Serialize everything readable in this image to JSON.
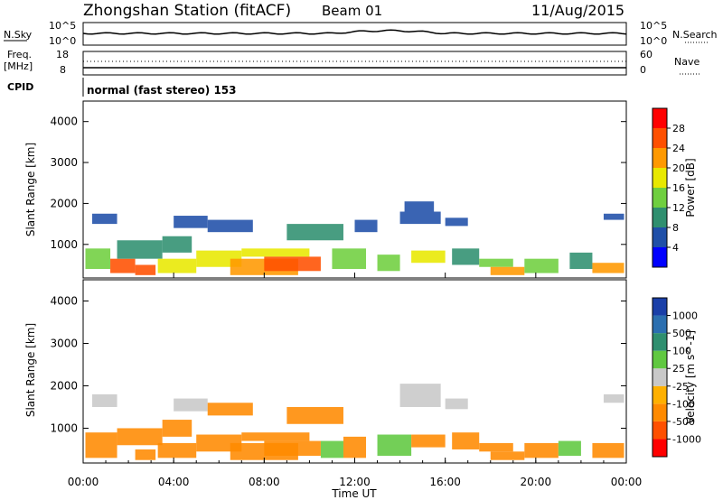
{
  "header": {
    "station": "Zhongshan Station (fitACF)",
    "beam": "Beam 01",
    "date": "11/Aug/2015"
  },
  "top_panel": {
    "left_label": "N.Sky",
    "left_ticks": [
      "10^5",
      "10^0"
    ],
    "right_label": "N.Search",
    "right_ticks": [
      "10^5",
      "10^0"
    ]
  },
  "freq_panel": {
    "left_label": "Freq.",
    "left_unit": "[MHz]",
    "left_ticks": [
      "18",
      "8"
    ],
    "right_label": "Nave",
    "right_ticks": [
      "60",
      "0"
    ]
  },
  "cpid_panel": {
    "label": "CPID",
    "text": "normal (fast stereo) 153"
  },
  "axes": {
    "y_label": "Slant Range [km]",
    "y_ticks": [
      "4000",
      "3000",
      "2000",
      "1000"
    ],
    "x_label": "Time UT",
    "x_ticks": [
      "00:00",
      "04:00",
      "08:00",
      "12:00",
      "16:00",
      "20:00",
      "00:00"
    ]
  },
  "power_scale": {
    "label": "Power [dB]",
    "ticks": [
      "28",
      "24",
      "20",
      "16",
      "12",
      "8",
      "4"
    ],
    "colors": [
      "#0000ff",
      "#1f4fa8",
      "#2f8f6f",
      "#6fcf3f",
      "#e8e800",
      "#ff9900",
      "#ff5000",
      "#ff0000"
    ]
  },
  "velocity_scale": {
    "label": "Velocity [m s^-1]",
    "ticks": [
      "1000",
      "500",
      "100",
      "25",
      "-25",
      "-100",
      "-500",
      "-1000"
    ],
    "colors": [
      "#1a3fa8",
      "#2b6fb0",
      "#2f8f6f",
      "#60c840",
      "#c8c8c8",
      "#ffb000",
      "#ff8a00",
      "#ff5000",
      "#ff0000"
    ]
  },
  "chart_data": [
    {
      "type": "heatmap",
      "name_label": "Power",
      "x_unit": "hours UT",
      "xlim": [
        0,
        24
      ],
      "ylim": [
        180,
        4500
      ],
      "ylabel": "Slant Range [km]",
      "xlabel": "",
      "clim": [
        2,
        32
      ],
      "cells": [
        [
          0.1,
          1.2,
          400,
          900,
          14
        ],
        [
          0.4,
          1.5,
          1500,
          1750,
          9
        ],
        [
          1.2,
          2.3,
          300,
          650,
          28
        ],
        [
          1.5,
          3.5,
          650,
          1100,
          12
        ],
        [
          2.3,
          3.2,
          250,
          500,
          27
        ],
        [
          3.3,
          5.0,
          300,
          650,
          18
        ],
        [
          3.5,
          4.8,
          800,
          1200,
          10
        ],
        [
          4.0,
          5.5,
          1400,
          1700,
          7
        ],
        [
          5.0,
          7.0,
          450,
          850,
          20
        ],
        [
          5.5,
          7.5,
          1300,
          1600,
          8
        ],
        [
          6.5,
          9.5,
          250,
          650,
          24
        ],
        [
          7.0,
          10.0,
          700,
          900,
          19
        ],
        [
          8.0,
          10.5,
          350,
          700,
          28
        ],
        [
          9.0,
          11.5,
          1100,
          1500,
          11
        ],
        [
          11.0,
          12.5,
          400,
          900,
          16
        ],
        [
          12.0,
          13.0,
          1300,
          1600,
          9
        ],
        [
          13.0,
          14.0,
          350,
          750,
          14
        ],
        [
          14.0,
          15.8,
          1500,
          1800,
          9
        ],
        [
          14.2,
          15.5,
          1800,
          2050,
          6
        ],
        [
          14.5,
          16.0,
          550,
          850,
          18
        ],
        [
          16.0,
          17.0,
          1450,
          1650,
          8
        ],
        [
          16.3,
          17.5,
          500,
          900,
          13
        ],
        [
          17.5,
          19.0,
          450,
          650,
          15
        ],
        [
          18.0,
          19.5,
          250,
          450,
          22
        ],
        [
          19.5,
          21.0,
          300,
          650,
          14
        ],
        [
          21.5,
          22.5,
          400,
          800,
          11
        ],
        [
          22.5,
          23.9,
          300,
          550,
          25
        ],
        [
          23.0,
          23.9,
          1600,
          1750,
          8
        ]
      ]
    },
    {
      "type": "heatmap",
      "name_label": "Velocity",
      "x_unit": "hours UT",
      "xlim": [
        0,
        24
      ],
      "ylim": [
        180,
        4500
      ],
      "ylabel": "Slant Range [km]",
      "xlabel": "Time UT",
      "clim": [
        -1000,
        1000
      ],
      "cells": [
        [
          0.1,
          1.5,
          300,
          900,
          -200
        ],
        [
          0.4,
          1.5,
          1500,
          1800,
          0
        ],
        [
          1.5,
          3.5,
          600,
          1000,
          -200
        ],
        [
          2.3,
          3.2,
          250,
          500,
          -300
        ],
        [
          3.3,
          5.0,
          300,
          650,
          -150
        ],
        [
          3.5,
          4.8,
          800,
          1200,
          -150
        ],
        [
          4.0,
          5.5,
          1400,
          1700,
          0
        ],
        [
          5.0,
          7.0,
          450,
          850,
          -200
        ],
        [
          5.5,
          7.5,
          1300,
          1600,
          -150
        ],
        [
          6.5,
          9.5,
          250,
          650,
          -300
        ],
        [
          7.0,
          10.0,
          700,
          900,
          -250
        ],
        [
          8.0,
          10.5,
          350,
          700,
          -400
        ],
        [
          9.0,
          11.5,
          1100,
          1500,
          -200
        ],
        [
          10.5,
          11.5,
          300,
          700,
          80
        ],
        [
          11.5,
          12.5,
          300,
          800,
          -200
        ],
        [
          13.0,
          14.5,
          350,
          850,
          80
        ],
        [
          14.0,
          15.8,
          1500,
          2050,
          0
        ],
        [
          14.5,
          16.0,
          550,
          850,
          -150
        ],
        [
          16.0,
          17.0,
          1450,
          1700,
          0
        ],
        [
          16.3,
          17.5,
          500,
          900,
          -200
        ],
        [
          17.5,
          19.0,
          450,
          650,
          -200
        ],
        [
          18.0,
          19.5,
          250,
          450,
          -250
        ],
        [
          19.5,
          21.0,
          300,
          650,
          -150
        ],
        [
          21.0,
          22.0,
          350,
          700,
          60
        ],
        [
          22.5,
          23.9,
          300,
          650,
          -200
        ],
        [
          23.0,
          23.9,
          1600,
          1800,
          0
        ]
      ]
    }
  ]
}
